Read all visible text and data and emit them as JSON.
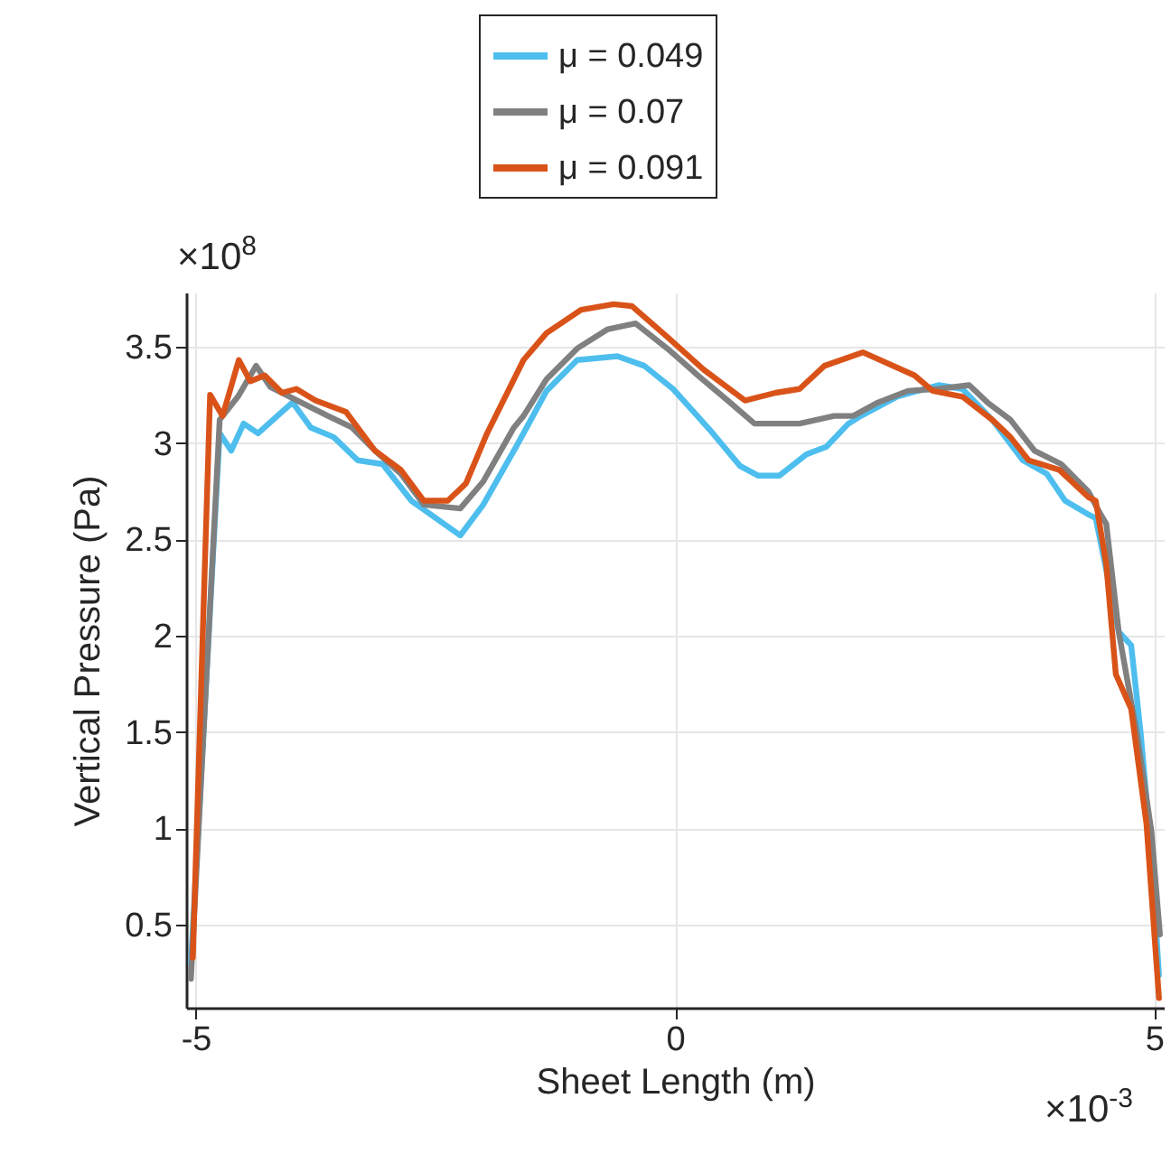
{
  "chart_data": {
    "type": "line",
    "xlabel": "Sheet Length (m)",
    "ylabel": "Vertical Pressure (Pa)",
    "annotations": [
      "×10$^{8}$",
      "×10$^{-3}$"
    ],
    "xlim": [
      -5.1,
      5.1
    ],
    "ylim": [
      0.07,
      3.78
    ],
    "xticks": [
      -5,
      0,
      5
    ],
    "yticks": [
      0.5,
      1,
      1.5,
      2,
      2.5,
      3,
      3.5
    ],
    "grid": true,
    "legend": "top",
    "line_style": "solid",
    "marker": "none",
    "series": [
      {
        "name": "μ = 0.049",
        "color": "#4dbeee",
        "x": [
          -5.05,
          -4.75,
          -4.63,
          -4.5,
          -4.35,
          -3.99,
          -3.8,
          -3.56,
          -3.31,
          -3.05,
          -2.75,
          -2.24,
          -2.0,
          -1.68,
          -1.58,
          -1.34,
          -1.02,
          -0.6,
          -0.32,
          -0.02,
          0.36,
          0.68,
          0.87,
          1.09,
          1.37,
          1.58,
          1.81,
          1.94,
          2.32,
          2.75,
          3.0,
          3.31,
          3.63,
          3.88,
          4.07,
          4.31,
          4.39,
          4.63,
          4.76,
          4.86,
          4.97,
          5.05
        ],
        "values": [
          0.3,
          3.05,
          2.96,
          3.1,
          3.05,
          3.21,
          3.08,
          3.03,
          2.91,
          2.89,
          2.7,
          2.52,
          2.68,
          2.96,
          3.05,
          3.27,
          3.43,
          3.45,
          3.4,
          3.28,
          3.07,
          2.88,
          2.83,
          2.83,
          2.94,
          2.98,
          3.1,
          3.14,
          3.24,
          3.3,
          3.28,
          3.12,
          2.91,
          2.84,
          2.7,
          2.63,
          2.61,
          2.02,
          1.95,
          1.49,
          0.87,
          0.24
        ]
      },
      {
        "name": "μ = 0.07",
        "color": "#808080",
        "x": [
          -5.05,
          -4.75,
          -4.56,
          -4.37,
          -4.22,
          -3.94,
          -3.62,
          -3.37,
          -3.13,
          -2.86,
          -2.62,
          -2.24,
          -2.0,
          -1.68,
          -1.58,
          -1.34,
          -1.02,
          -0.7,
          -0.41,
          -0.08,
          0.24,
          0.55,
          0.83,
          1.05,
          1.3,
          1.66,
          1.86,
          2.12,
          2.43,
          2.75,
          3.07,
          3.26,
          3.5,
          3.75,
          4.03,
          4.31,
          4.44,
          4.5,
          4.63,
          4.82,
          4.97,
          5.06
        ],
        "values": [
          0.22,
          3.12,
          3.24,
          3.4,
          3.29,
          3.22,
          3.14,
          3.08,
          2.96,
          2.84,
          2.68,
          2.66,
          2.8,
          3.08,
          3.14,
          3.33,
          3.49,
          3.59,
          3.62,
          3.49,
          3.35,
          3.22,
          3.1,
          3.1,
          3.1,
          3.14,
          3.14,
          3.21,
          3.27,
          3.28,
          3.3,
          3.21,
          3.12,
          2.96,
          2.89,
          2.75,
          2.63,
          2.58,
          2.02,
          1.49,
          0.99,
          0.45
        ]
      },
      {
        "name": "μ = 0.091",
        "color": "#d95319",
        "x": [
          -5.03,
          -4.85,
          -4.72,
          -4.55,
          -4.43,
          -4.28,
          -4.1,
          -3.95,
          -3.75,
          -3.43,
          -3.13,
          -2.86,
          -2.62,
          -2.37,
          -2.18,
          -1.96,
          -1.58,
          -1.34,
          -0.98,
          -0.64,
          -0.45,
          -0.08,
          0.3,
          0.73,
          1.05,
          1.3,
          1.56,
          1.96,
          2.5,
          2.69,
          3.0,
          3.31,
          3.5,
          3.69,
          4.01,
          4.31,
          4.39,
          4.5,
          4.6,
          4.76,
          4.92,
          5.05
        ],
        "values": [
          0.33,
          3.25,
          3.14,
          3.43,
          3.32,
          3.35,
          3.26,
          3.28,
          3.22,
          3.16,
          2.96,
          2.86,
          2.7,
          2.7,
          2.79,
          3.05,
          3.43,
          3.57,
          3.69,
          3.72,
          3.71,
          3.55,
          3.38,
          3.22,
          3.26,
          3.28,
          3.4,
          3.47,
          3.35,
          3.27,
          3.24,
          3.12,
          3.03,
          2.91,
          2.86,
          2.72,
          2.7,
          2.37,
          1.8,
          1.62,
          1.02,
          0.12
        ]
      }
    ]
  }
}
